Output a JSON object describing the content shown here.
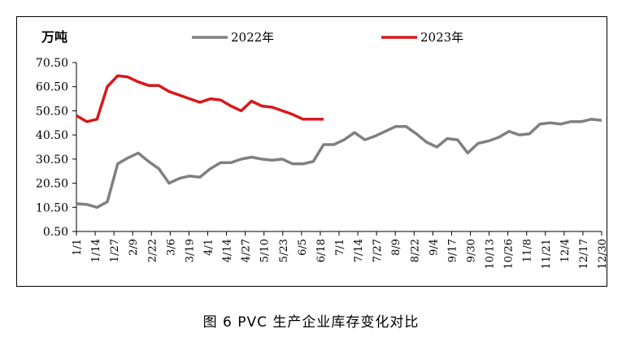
{
  "caption": "图 6  PVC 生产企业库存变化对比",
  "chart_data": {
    "type": "line",
    "ylabel": "万吨",
    "ylim": [
      0.5,
      70.5
    ],
    "yticks": [
      "0.50",
      "10.50",
      "20.50",
      "30.50",
      "40.50",
      "50.50",
      "60.50",
      "70.50"
    ],
    "ytick_values": [
      0.5,
      10.5,
      20.5,
      30.5,
      40.5,
      50.5,
      60.5,
      70.5
    ],
    "xlabels": [
      "1/1",
      "1/14",
      "1/27",
      "2/9",
      "2/22",
      "3/6",
      "3/19",
      "4/1",
      "4/14",
      "4/27",
      "5/10",
      "5/23",
      "6/5",
      "6/18",
      "7/1",
      "7/14",
      "7/27",
      "8/9",
      "8/22",
      "9/4",
      "9/17",
      "9/30",
      "10/13",
      "10/26",
      "11/8",
      "11/21",
      "12/4",
      "12/17",
      "12/30"
    ],
    "legend_position": "top",
    "grid": false,
    "series": [
      {
        "name": "2022年",
        "color": "#808080",
        "values": [
          12,
          11.7,
          10.5,
          12.8,
          28.5,
          31,
          33,
          29.5,
          26.5,
          20.5,
          22.5,
          23.5,
          23,
          26.5,
          29,
          29,
          30.5,
          31.3,
          30.5,
          30,
          30.5,
          28.5,
          28.5,
          29.5,
          36.5,
          36.5,
          38.5,
          41.5,
          38.5,
          40,
          42,
          44,
          44,
          41,
          37.5,
          35.5,
          39,
          38.5,
          33,
          37,
          38,
          39.5,
          42,
          40.5,
          41,
          45,
          45.5,
          45,
          46,
          46,
          47,
          46.5
        ]
      },
      {
        "name": "2023年",
        "color": "#d7191c",
        "values": [
          48.5,
          46,
          47,
          60.5,
          65,
          64.5,
          62.5,
          61,
          61,
          58.5,
          57,
          55.5,
          54,
          55.5,
          55,
          52.5,
          50.5,
          54.5,
          52.5,
          52,
          50.5,
          49,
          47,
          47,
          47
        ]
      }
    ]
  }
}
